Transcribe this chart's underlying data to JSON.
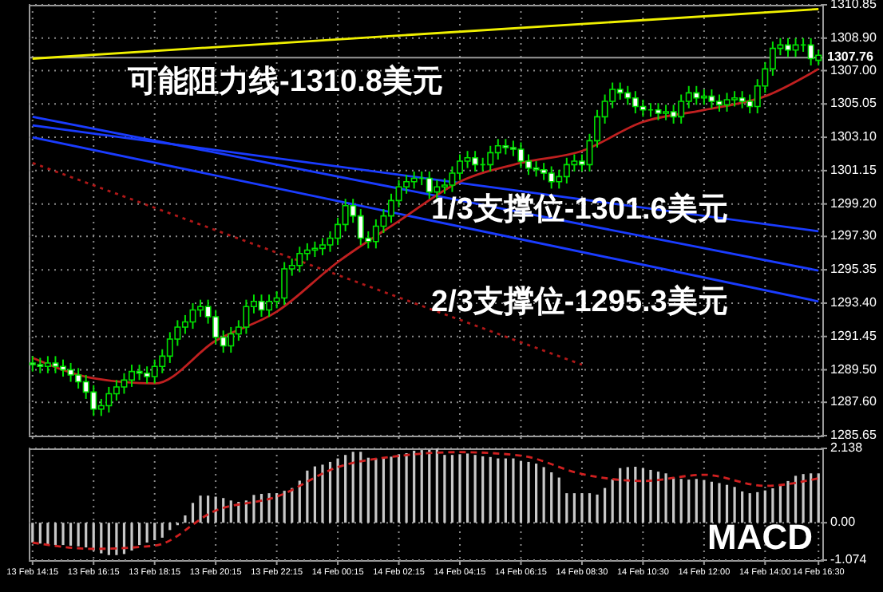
{
  "chart_data": [
    {
      "type": "candlestick",
      "color": "#00e000",
      "categories": [
        "13 Feb 14:15",
        null,
        null,
        null,
        null,
        null,
        null,
        null,
        "13 Feb 16:15",
        null,
        null,
        null,
        null,
        null,
        null,
        null,
        "13 Feb 18:15",
        null,
        null,
        null,
        null,
        null,
        null,
        null,
        "13 Feb 20:15",
        null,
        null,
        null,
        null,
        null,
        null,
        null,
        "13 Feb 22:15",
        null,
        null,
        null,
        null,
        null,
        null,
        null,
        "14 Feb 00:15",
        null,
        null,
        null,
        null,
        null,
        null,
        null,
        "14 Feb 02:15",
        null,
        null,
        null,
        null,
        null,
        null,
        null,
        "14 Feb 04:15",
        null,
        null,
        null,
        null,
        null,
        null,
        null,
        "14 Feb 06:15",
        null,
        null,
        null,
        null,
        null,
        null,
        null,
        "14 Feb 08:30",
        null,
        null,
        null,
        null,
        null,
        null,
        null,
        "14 Feb 10:30",
        null,
        null,
        null,
        null,
        null,
        null,
        null,
        "14 Feb 12:00",
        null,
        null,
        null,
        null,
        null,
        null,
        null,
        "14 Feb 14:00",
        null,
        null,
        null,
        null,
        null,
        null,
        "14 Feb 16:30"
      ],
      "ohlc": [
        [
          1289.9,
          1290.3,
          1289.4,
          1289.8
        ],
        [
          1289.8,
          1290.2,
          1289.3,
          1289.7
        ],
        [
          1289.7,
          1290.3,
          1289.3,
          1289.9
        ],
        [
          1289.9,
          1290.3,
          1289.3,
          1289.7
        ],
        [
          1289.7,
          1290.1,
          1289.1,
          1289.5
        ],
        [
          1289.5,
          1289.9,
          1288.8,
          1289.2
        ],
        [
          1289.2,
          1289.6,
          1288.4,
          1288.8
        ],
        [
          1288.8,
          1289.2,
          1287.8,
          1288.2
        ],
        [
          1288.2,
          1288.6,
          1286.8,
          1287.2
        ],
        [
          1287.2,
          1287.8,
          1286.8,
          1287.4
        ],
        [
          1287.4,
          1288.5,
          1287.0,
          1288.1
        ],
        [
          1288.1,
          1288.9,
          1287.7,
          1288.5
        ],
        [
          1288.5,
          1289.3,
          1288.1,
          1288.9
        ],
        [
          1288.9,
          1289.8,
          1288.5,
          1289.4
        ],
        [
          1289.4,
          1289.8,
          1288.9,
          1289.3
        ],
        [
          1289.3,
          1289.7,
          1288.7,
          1289.1
        ],
        [
          1289.1,
          1290.1,
          1288.7,
          1289.7
        ],
        [
          1289.7,
          1290.7,
          1289.3,
          1290.3
        ],
        [
          1290.3,
          1291.7,
          1289.9,
          1291.3
        ],
        [
          1291.3,
          1292.4,
          1290.9,
          1292.0
        ],
        [
          1292.0,
          1292.7,
          1291.6,
          1292.3
        ],
        [
          1292.3,
          1293.4,
          1291.9,
          1293.0
        ],
        [
          1293.0,
          1293.6,
          1292.6,
          1293.2
        ],
        [
          1293.2,
          1293.6,
          1292.2,
          1292.6
        ],
        [
          1292.6,
          1293.0,
          1291.0,
          1291.4
        ],
        [
          1291.4,
          1291.8,
          1290.5,
          1290.9
        ],
        [
          1290.9,
          1292.0,
          1290.5,
          1291.6
        ],
        [
          1291.6,
          1292.4,
          1291.2,
          1292.0
        ],
        [
          1292.0,
          1293.6,
          1291.6,
          1293.2
        ],
        [
          1293.2,
          1293.9,
          1292.8,
          1293.5
        ],
        [
          1293.5,
          1293.9,
          1292.6,
          1293.0
        ],
        [
          1293.0,
          1293.9,
          1292.6,
          1293.5
        ],
        [
          1293.5,
          1294.1,
          1293.1,
          1293.7
        ],
        [
          1293.7,
          1295.8,
          1293.3,
          1295.4
        ],
        [
          1295.4,
          1296.0,
          1295.0,
          1295.6
        ],
        [
          1295.6,
          1296.7,
          1295.2,
          1296.3
        ],
        [
          1296.3,
          1296.9,
          1295.9,
          1296.5
        ],
        [
          1296.5,
          1297.0,
          1296.1,
          1296.6
        ],
        [
          1296.6,
          1297.2,
          1296.2,
          1296.8
        ],
        [
          1296.8,
          1297.6,
          1296.4,
          1297.2
        ],
        [
          1297.2,
          1298.4,
          1296.8,
          1298.0
        ],
        [
          1298.0,
          1299.5,
          1297.6,
          1299.1
        ],
        [
          1299.1,
          1299.5,
          1298.1,
          1298.5
        ],
        [
          1298.5,
          1298.9,
          1296.8,
          1297.2
        ],
        [
          1297.2,
          1297.6,
          1296.6,
          1297.0
        ],
        [
          1297.0,
          1298.3,
          1296.6,
          1297.9
        ],
        [
          1297.9,
          1298.9,
          1297.5,
          1298.5
        ],
        [
          1298.5,
          1299.8,
          1298.1,
          1299.4
        ],
        [
          1299.4,
          1300.6,
          1299.0,
          1300.2
        ],
        [
          1300.2,
          1300.9,
          1299.8,
          1300.5
        ],
        [
          1300.5,
          1301.1,
          1300.1,
          1300.7
        ],
        [
          1300.7,
          1301.1,
          1300.3,
          1300.7
        ],
        [
          1300.7,
          1301.1,
          1299.5,
          1299.9
        ],
        [
          1299.9,
          1300.6,
          1299.5,
          1300.2
        ],
        [
          1300.2,
          1300.7,
          1299.8,
          1300.3
        ],
        [
          1300.3,
          1301.4,
          1299.9,
          1301.0
        ],
        [
          1301.0,
          1302.1,
          1300.6,
          1301.7
        ],
        [
          1301.7,
          1302.3,
          1301.3,
          1301.9
        ],
        [
          1301.9,
          1302.3,
          1301.1,
          1301.5
        ],
        [
          1301.5,
          1301.9,
          1301.1,
          1301.5
        ],
        [
          1301.5,
          1302.6,
          1301.1,
          1302.2
        ],
        [
          1302.2,
          1303.0,
          1301.8,
          1302.6
        ],
        [
          1302.6,
          1303.0,
          1302.1,
          1302.5
        ],
        [
          1302.5,
          1302.9,
          1302.0,
          1302.4
        ],
        [
          1302.4,
          1302.8,
          1301.3,
          1301.7
        ],
        [
          1301.7,
          1302.1,
          1300.9,
          1301.3
        ],
        [
          1301.3,
          1301.7,
          1300.8,
          1301.2
        ],
        [
          1301.2,
          1301.6,
          1300.6,
          1301.0
        ],
        [
          1301.0,
          1301.4,
          1300.1,
          1300.5
        ],
        [
          1300.5,
          1301.2,
          1300.1,
          1300.8
        ],
        [
          1300.8,
          1301.9,
          1300.4,
          1301.5
        ],
        [
          1301.5,
          1302.1,
          1301.1,
          1301.7
        ],
        [
          1301.7,
          1302.1,
          1301.1,
          1301.5
        ],
        [
          1301.5,
          1303.3,
          1301.1,
          1302.9
        ],
        [
          1302.9,
          1304.7,
          1302.5,
          1304.3
        ],
        [
          1304.3,
          1305.6,
          1303.9,
          1305.2
        ],
        [
          1305.2,
          1306.3,
          1304.8,
          1305.9
        ],
        [
          1305.9,
          1306.3,
          1305.3,
          1305.7
        ],
        [
          1305.7,
          1306.1,
          1305.0,
          1305.4
        ],
        [
          1305.4,
          1305.8,
          1304.5,
          1304.9
        ],
        [
          1304.9,
          1305.3,
          1304.3,
          1304.7
        ],
        [
          1304.7,
          1305.1,
          1304.3,
          1304.7
        ],
        [
          1304.7,
          1305.1,
          1304.1,
          1304.5
        ],
        [
          1304.5,
          1305.0,
          1304.1,
          1304.6
        ],
        [
          1304.6,
          1305.0,
          1303.9,
          1304.3
        ],
        [
          1304.3,
          1305.6,
          1303.9,
          1305.2
        ],
        [
          1305.2,
          1306.1,
          1304.8,
          1305.7
        ],
        [
          1305.7,
          1306.1,
          1305.0,
          1305.4
        ],
        [
          1305.4,
          1305.9,
          1305.0,
          1305.5
        ],
        [
          1305.5,
          1305.9,
          1304.8,
          1305.2
        ],
        [
          1305.2,
          1305.6,
          1304.6,
          1305.0
        ],
        [
          1305.0,
          1305.7,
          1304.6,
          1305.3
        ],
        [
          1305.3,
          1305.8,
          1304.9,
          1305.4
        ],
        [
          1305.4,
          1305.8,
          1304.8,
          1305.2
        ],
        [
          1305.2,
          1305.6,
          1304.5,
          1304.9
        ],
        [
          1304.9,
          1306.5,
          1304.5,
          1306.1
        ],
        [
          1306.1,
          1307.5,
          1305.7,
          1307.1
        ],
        [
          1307.1,
          1308.7,
          1306.7,
          1308.3
        ],
        [
          1308.3,
          1308.9,
          1307.9,
          1308.5
        ],
        [
          1308.5,
          1308.9,
          1307.8,
          1308.2
        ],
        [
          1308.2,
          1308.9,
          1307.8,
          1308.5
        ],
        [
          1308.5,
          1308.9,
          1308.1,
          1308.5
        ],
        [
          1308.5,
          1308.9,
          1307.3,
          1307.7
        ],
        [
          1307.6,
          1308.2,
          1307.3,
          1307.9
        ]
      ],
      "series": [
        {
          "type": "line",
          "color": "#f0f000",
          "x": [
            "13 Feb 14:15",
            "14 Feb 16:30"
          ],
          "values": [
            1307.7,
            1310.6
          ]
        },
        {
          "type": "line",
          "color": "#1a3cff",
          "x": [
            "13 Feb 14:15",
            "14 Feb 16:30"
          ],
          "values": [
            1303.8,
            1297.6
          ]
        },
        {
          "type": "line",
          "color": "#1a3cff",
          "x": [
            "13 Feb 14:15",
            "14 Feb 16:30"
          ],
          "values": [
            1304.3,
            1295.3
          ]
        },
        {
          "type": "line",
          "color": "#1a3cff",
          "x": [
            "13 Feb 14:15",
            "14 Feb 16:30"
          ],
          "values": [
            1303.1,
            1293.5
          ]
        },
        {
          "type": "line",
          "color": "#b01818",
          "line_style": "dotted",
          "x": [
            "13 Feb 14:15",
            "14 Feb 08:30"
          ],
          "values": [
            1301.6,
            1289.8
          ]
        },
        {
          "type": "line",
          "color": "#c02020",
          "x": [
            "13 Feb 14:15",
            "13 Feb 16:15",
            "13 Feb 18:15",
            "13 Feb 20:15",
            "13 Feb 22:15",
            "14 Feb 00:15",
            "14 Feb 02:15",
            "14 Feb 04:15",
            "14 Feb 06:15",
            "14 Feb 08:30",
            "14 Feb 10:30",
            "14 Feb 12:00",
            "14 Feb 14:00",
            "14 Feb 16:30"
          ],
          "values": [
            1290.2,
            1289.0,
            1288.7,
            1291.2,
            1292.9,
            1295.8,
            1298.2,
            1300.5,
            1301.6,
            1302.3,
            1304.0,
            1304.7,
            1305.5,
            1307.1
          ]
        }
      ],
      "ylim": [
        1285.65,
        1310.85
      ],
      "yticks": [
        {
          "value": 1285.65,
          "label": "1285.65"
        },
        {
          "value": 1287.6,
          "label": "1287.60"
        },
        {
          "value": 1289.5,
          "label": "1289.50"
        },
        {
          "value": 1291.45,
          "label": "1291.45"
        },
        {
          "value": 1293.4,
          "label": "1293.40"
        },
        {
          "value": 1295.35,
          "label": "1295.35"
        },
        {
          "value": 1297.3,
          "label": "1297.30"
        },
        {
          "value": 1299.2,
          "label": "1299.20"
        },
        {
          "value": 1301.15,
          "label": "1301.15"
        },
        {
          "value": 1303.1,
          "label": "1303.10"
        },
        {
          "value": 1305.05,
          "label": "1305.05"
        },
        {
          "value": 1307,
          "label": "1307.00"
        },
        {
          "value": 1308.9,
          "label": "1308.90"
        },
        {
          "value": 1310.85,
          "label": "1310.85"
        }
      ],
      "ref_lines": [
        {
          "axis": "y",
          "value": 1307.76,
          "label": "1307.76",
          "color": "#9a9a9a"
        }
      ],
      "annotations": [
        "可能阻力线-1310.8美元",
        "1/3支撑位-1301.6美元",
        "2/3支撑位-1295.3美元"
      ],
      "grid": true,
      "tick_labels": "y"
    },
    {
      "type": "bar",
      "categories": [
        "13 Feb 14:15",
        null,
        null,
        null,
        null,
        null,
        null,
        null,
        "13 Feb 16:15",
        null,
        null,
        null,
        null,
        null,
        null,
        null,
        "13 Feb 18:15",
        null,
        null,
        null,
        null,
        null,
        null,
        null,
        "13 Feb 20:15",
        null,
        null,
        null,
        null,
        null,
        null,
        null,
        "13 Feb 22:15",
        null,
        null,
        null,
        null,
        null,
        null,
        null,
        "14 Feb 00:15",
        null,
        null,
        null,
        null,
        null,
        null,
        null,
        "14 Feb 02:15",
        null,
        null,
        null,
        null,
        null,
        null,
        null,
        "14 Feb 04:15",
        null,
        null,
        null,
        null,
        null,
        null,
        null,
        "14 Feb 06:15",
        null,
        null,
        null,
        null,
        null,
        null,
        null,
        "14 Feb 08:30",
        null,
        null,
        null,
        null,
        null,
        null,
        null,
        "14 Feb 10:30",
        null,
        null,
        null,
        null,
        null,
        null,
        null,
        "14 Feb 12:00",
        null,
        null,
        null,
        null,
        null,
        null,
        null,
        "14 Feb 14:00",
        null,
        null,
        null,
        null,
        null,
        null,
        "14 Feb 16:30"
      ],
      "series": [
        {
          "type": "bar",
          "color": "#c8c8c8",
          "values": [
            -0.57,
            -0.6,
            -0.64,
            -0.64,
            -0.64,
            -0.66,
            -0.68,
            -0.71,
            -0.8,
            -0.88,
            -0.93,
            -0.93,
            -0.9,
            -0.8,
            -0.64,
            -0.57,
            -0.5,
            -0.43,
            -0.21,
            -0.07,
            0.21,
            0.57,
            0.78,
            0.78,
            0.75,
            0.71,
            0.64,
            0.6,
            0.64,
            0.8,
            0.83,
            0.85,
            0.85,
            0.92,
            1.0,
            1.21,
            1.5,
            1.62,
            1.67,
            1.75,
            1.85,
            1.95,
            2.04,
            2.04,
            1.87,
            1.85,
            1.85,
            1.9,
            1.97,
            2.0,
            2.07,
            2.09,
            2.1,
            2.13,
            1.95,
            1.95,
            1.97,
            1.99,
            1.95,
            1.91,
            1.89,
            1.85,
            1.85,
            1.85,
            1.78,
            1.75,
            1.7,
            1.6,
            1.45,
            1.3,
            0.85,
            0.85,
            0.85,
            0.85,
            0.81,
            1.0,
            1.25,
            1.57,
            1.6,
            1.61,
            1.57,
            1.52,
            1.47,
            1.42,
            1.3,
            1.26,
            1.24,
            1.26,
            1.23,
            1.18,
            1.14,
            1.09,
            1.03,
            0.9,
            0.85,
            0.88,
            0.93,
            0.99,
            1.1,
            1.2,
            1.35,
            1.4,
            1.42,
            1.42
          ]
        },
        {
          "type": "line",
          "color": "#d02020",
          "line_style": "dashed",
          "x": [
            "13 Feb 14:15",
            "13 Feb 16:15",
            "13 Feb 18:15",
            "13 Feb 20:15",
            "13 Feb 22:15",
            "14 Feb 00:15",
            "14 Feb 02:15",
            "14 Feb 04:15",
            "14 Feb 06:15",
            "14 Feb 08:30",
            "14 Feb 10:30",
            "14 Feb 12:00",
            "14 Feb 14:00",
            "14 Feb 16:30"
          ],
          "values": [
            -0.57,
            -0.75,
            -0.66,
            0.35,
            0.75,
            1.6,
            1.92,
            2.03,
            1.93,
            1.4,
            1.2,
            1.38,
            1.06,
            1.28
          ]
        }
      ],
      "ylim": [
        -1.074,
        2.138
      ],
      "yticks": [
        2.138,
        {
          "value": 0,
          "label": "0.00"
        },
        -1.074
      ],
      "annotations": [
        "MACD"
      ],
      "grid": true
    }
  ]
}
